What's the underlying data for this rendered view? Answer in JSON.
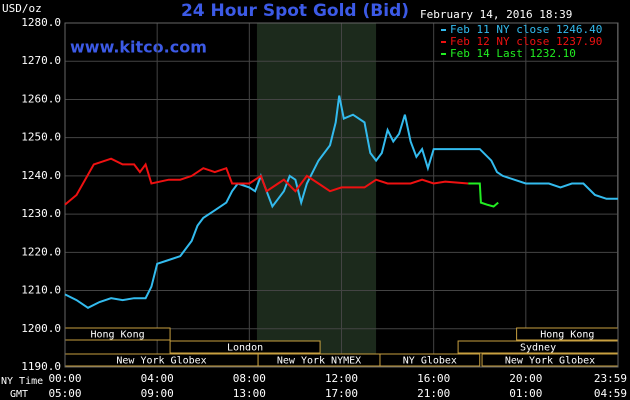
{
  "chart_data": {
    "type": "line",
    "title": "24 Hour Spot Gold (Bid)",
    "y_label": "USD/oz",
    "watermark": "www.kitco.com",
    "timestamp": "February 14, 2016 18:39",
    "grid": true,
    "xlim": [
      0,
      24
    ],
    "ylim": [
      1190,
      1280
    ],
    "yticks": [
      {
        "value": 1190,
        "label": "1190.0"
      },
      {
        "value": 1200,
        "label": "1200.0"
      },
      {
        "value": 1210,
        "label": "1210.0"
      },
      {
        "value": 1220,
        "label": "1220.0"
      },
      {
        "value": 1230,
        "label": "1230.0"
      },
      {
        "value": 1240,
        "label": "1240.0"
      },
      {
        "value": 1250,
        "label": "1250.0"
      },
      {
        "value": 1260,
        "label": "1260.0"
      },
      {
        "value": 1270,
        "label": "1270.0"
      },
      {
        "value": 1280,
        "label": "1280.0"
      }
    ],
    "xticks": [
      {
        "value": 0,
        "label": "00:00"
      },
      {
        "value": 4,
        "label": "04:00"
      },
      {
        "value": 8,
        "label": "08:00"
      },
      {
        "value": 12,
        "label": "12:00"
      },
      {
        "value": 16,
        "label": "16:00"
      },
      {
        "value": 20,
        "label": "20:00"
      },
      {
        "value": 23.98,
        "label": "23:59"
      }
    ],
    "gmt_ticks": [
      "05:00",
      "09:00",
      "13:00",
      "17:00",
      "21:00",
      "01:00",
      "04:59"
    ],
    "x_rows": [
      "NY Time",
      "GMT"
    ],
    "shade": [
      8.33,
      13.5
    ],
    "sessions": [
      [
        {
          "label": "Hong Kong",
          "start": 0,
          "end": 4.56
        },
        {
          "label": "Hong Kong",
          "start": 19.6,
          "end": 24
        }
      ],
      [
        {
          "label": "London",
          "start": 4.56,
          "end": 11.07
        },
        {
          "label": "Sydney",
          "start": 17.06,
          "end": 24
        }
      ],
      [
        {
          "label": "New York Globex",
          "start": 0,
          "end": 8.38
        },
        {
          "label": "New York NYMEX",
          "start": 8.38,
          "end": 13.67
        },
        {
          "label": "NY Globex",
          "start": 13.67,
          "end": 18.0
        },
        {
          "label": "New York Globex",
          "start": 18.1,
          "end": 24
        }
      ]
    ],
    "series": [
      {
        "name": "Feb 11 NY close 1246.40",
        "color": "#33bbee",
        "x": [
          0,
          0.5,
          1,
          1.5,
          2,
          2.5,
          3,
          3.5,
          3.75,
          4,
          4.5,
          5,
          5.5,
          5.75,
          6,
          6.5,
          7,
          7.25,
          7.5,
          8,
          8.25,
          8.5,
          8.75,
          9,
          9.5,
          9.75,
          10,
          10.25,
          10.5,
          10.75,
          11,
          11.5,
          11.75,
          11.9,
          12.1,
          12.5,
          13,
          13.25,
          13.5,
          13.75,
          14,
          14.25,
          14.5,
          14.75,
          15,
          15.25,
          15.5,
          15.75,
          16,
          17,
          18,
          18.5,
          18.75,
          19,
          19.5,
          20,
          20.5,
          21,
          21.5,
          22,
          22.5,
          23,
          23.5,
          24
        ],
        "values": [
          1209,
          1207.5,
          1205.5,
          1207,
          1208,
          1207.5,
          1208,
          1208,
          1211,
          1217,
          1218,
          1219,
          1223,
          1227,
          1229,
          1231,
          1233,
          1236,
          1238,
          1237,
          1236,
          1240,
          1236,
          1232,
          1236,
          1240,
          1239,
          1233,
          1238,
          1241,
          1244,
          1248,
          1254,
          1261,
          1255,
          1256,
          1254,
          1246,
          1244,
          1246,
          1252,
          1249,
          1251,
          1256,
          1249,
          1245,
          1247,
          1242,
          1247,
          1247,
          1247,
          1244,
          1241,
          1240,
          1239,
          1238,
          1238,
          1238,
          1237,
          1238,
          1238,
          1235,
          1234,
          1234
        ]
      },
      {
        "name": "Feb 12 NY close 1237.90",
        "color": "#ee1111",
        "x": [
          0,
          0.5,
          1.25,
          2,
          2.5,
          3,
          3.25,
          3.5,
          3.75,
          4.5,
          5,
          5.5,
          6,
          6.5,
          7,
          7.25,
          8,
          8.25,
          8.5,
          8.75,
          9.25,
          9.5,
          10,
          10.5,
          11,
          11.5,
          12,
          13,
          13.5,
          14,
          15,
          15.5,
          16,
          16.5,
          17.5
        ],
        "values": [
          1232.5,
          1235,
          1243,
          1244.5,
          1243,
          1243,
          1241,
          1243,
          1238,
          1239,
          1239,
          1240,
          1242,
          1241,
          1242,
          1238,
          1238,
          1239,
          1240,
          1236,
          1238,
          1239,
          1236,
          1240,
          1238,
          1236,
          1237,
          1237,
          1239,
          1238,
          1238,
          1239,
          1238,
          1238.5,
          1238
        ]
      },
      {
        "name": "Feb 14 Last 1232.10",
        "color": "#22ee22",
        "x": [
          17.5,
          18,
          18.05,
          18.3,
          18.6,
          18.8
        ],
        "values": [
          1238,
          1238,
          1233,
          1232.5,
          1232,
          1233
        ]
      }
    ]
  }
}
